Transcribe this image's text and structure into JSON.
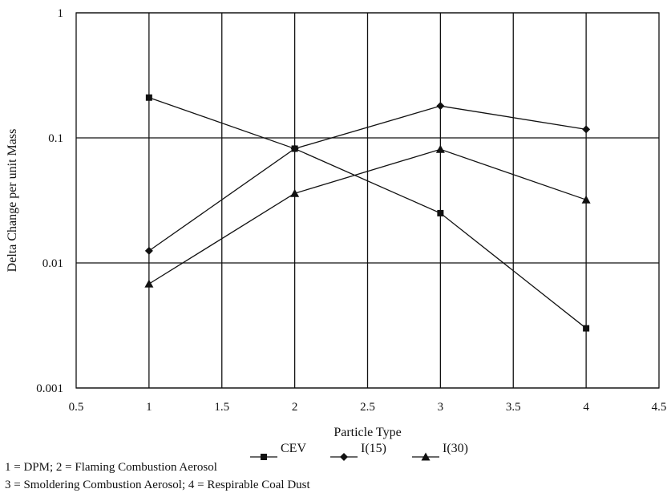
{
  "chart_data": {
    "type": "line",
    "xlabel": "Particle Type",
    "ylabel": "Delta Change per unit Mass",
    "xlim": [
      0.5,
      4.5
    ],
    "ylim": [
      0.001,
      1
    ],
    "y_scale": "log",
    "grid": true,
    "legend_position": "bottom",
    "x_ticks": [
      "0.5",
      "1",
      "1.5",
      "2",
      "2.5",
      "3",
      "3.5",
      "4",
      "4.5"
    ],
    "y_ticks": [
      "0.001",
      "0.01",
      "0.1",
      "1"
    ],
    "x": [
      1,
      2,
      3,
      4
    ],
    "series": [
      {
        "name": "CEV",
        "marker": "square",
        "values": [
          0.21,
          0.082,
          0.025,
          0.003
        ]
      },
      {
        "name": "I(15)",
        "marker": "diamond",
        "values": [
          0.0125,
          0.082,
          0.18,
          0.117
        ]
      },
      {
        "name": "I(30)",
        "marker": "triangle",
        "values": [
          0.0068,
          0.036,
          0.081,
          0.032
        ]
      }
    ]
  },
  "notes": [
    "1 = DPM; 2 = Flaming Combustion Aerosol",
    "3 = Smoldering Combustion Aerosol; 4 = Respirable Coal Dust"
  ]
}
